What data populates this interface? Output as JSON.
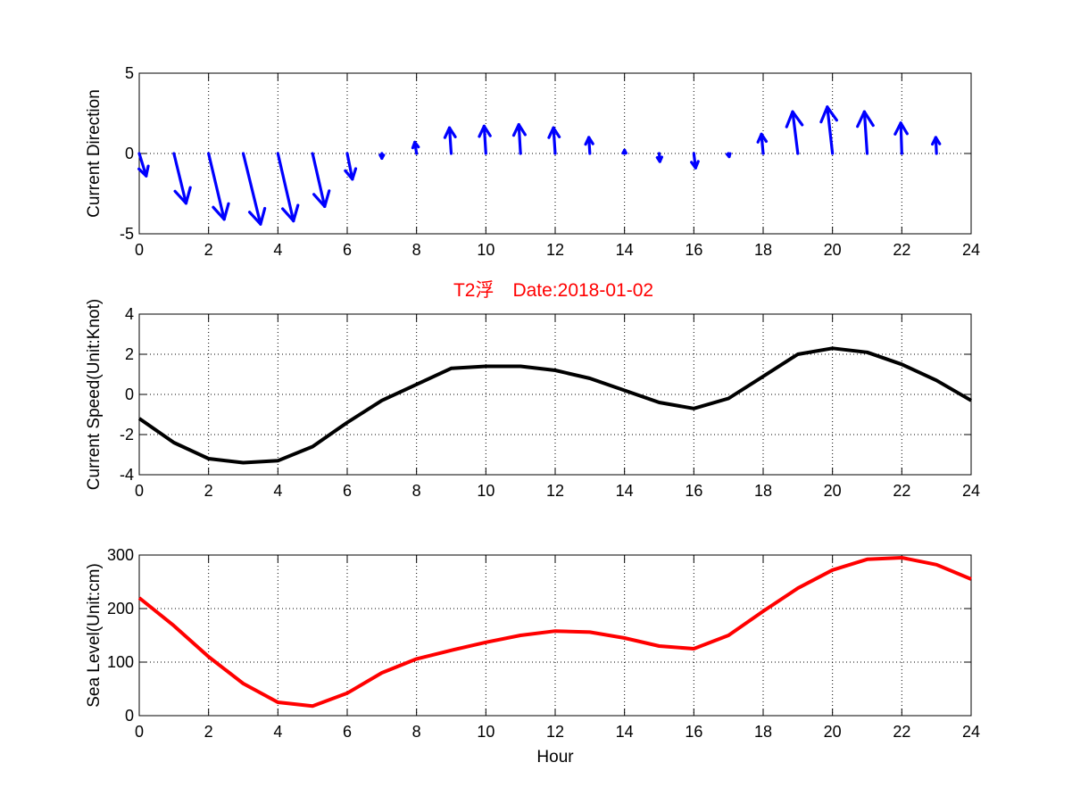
{
  "title": "T2浮　Date:2018-01-02",
  "colors": {
    "quiver": "#0000ff",
    "speed": "#000000",
    "sea": "#ff0000",
    "title": "#ff0000"
  },
  "chart_data": [
    {
      "type": "quiver",
      "ylabel": "Current Direction",
      "xlim": [
        0,
        24
      ],
      "ylim": [
        -5,
        5
      ],
      "xticks": [
        0,
        2,
        4,
        6,
        8,
        10,
        12,
        14,
        16,
        18,
        20,
        22,
        24
      ],
      "yticks": [
        -5,
        0,
        5
      ],
      "grid": true,
      "arrows": [
        {
          "x": 0,
          "u": 0.2,
          "v": -1.4
        },
        {
          "x": 1,
          "u": 0.35,
          "v": -3.1
        },
        {
          "x": 2,
          "u": 0.45,
          "v": -4.1
        },
        {
          "x": 3,
          "u": 0.5,
          "v": -4.4
        },
        {
          "x": 4,
          "u": 0.45,
          "v": -4.2
        },
        {
          "x": 5,
          "u": 0.35,
          "v": -3.3
        },
        {
          "x": 6,
          "u": 0.15,
          "v": -1.6
        },
        {
          "x": 7,
          "u": 0.0,
          "v": -0.3
        },
        {
          "x": 8,
          "u": -0.05,
          "v": 0.7
        },
        {
          "x": 9,
          "u": -0.05,
          "v": 1.6
        },
        {
          "x": 10,
          "u": -0.05,
          "v": 1.7
        },
        {
          "x": 11,
          "u": -0.05,
          "v": 1.8
        },
        {
          "x": 12,
          "u": -0.05,
          "v": 1.6
        },
        {
          "x": 13,
          "u": -0.03,
          "v": 1.0
        },
        {
          "x": 14,
          "u": 0.0,
          "v": 0.2
        },
        {
          "x": 15,
          "u": 0.02,
          "v": -0.5
        },
        {
          "x": 16,
          "u": 0.05,
          "v": -0.9
        },
        {
          "x": 17,
          "u": 0.02,
          "v": -0.2
        },
        {
          "x": 18,
          "u": -0.05,
          "v": 1.2
        },
        {
          "x": 19,
          "u": -0.15,
          "v": 2.6
        },
        {
          "x": 20,
          "u": -0.15,
          "v": 2.9
        },
        {
          "x": 21,
          "u": -0.08,
          "v": 2.6
        },
        {
          "x": 22,
          "u": -0.03,
          "v": 1.9
        },
        {
          "x": 23,
          "u": -0.02,
          "v": 1.0
        }
      ]
    },
    {
      "type": "line",
      "ylabel": "Current Speed(Unit:Knot)",
      "xlim": [
        0,
        24
      ],
      "ylim": [
        -4,
        4
      ],
      "xticks": [
        0,
        2,
        4,
        6,
        8,
        10,
        12,
        14,
        16,
        18,
        20,
        22,
        24
      ],
      "yticks": [
        -4,
        -2,
        0,
        2,
        4
      ],
      "grid": true,
      "x": [
        0,
        1,
        2,
        3,
        4,
        5,
        6,
        7,
        8,
        9,
        10,
        11,
        12,
        13,
        14,
        15,
        16,
        17,
        18,
        19,
        20,
        21,
        22,
        23,
        24
      ],
      "y": [
        -1.2,
        -2.4,
        -3.2,
        -3.4,
        -3.3,
        -2.6,
        -1.4,
        -0.3,
        0.5,
        1.3,
        1.4,
        1.4,
        1.2,
        0.8,
        0.2,
        -0.4,
        -0.7,
        -0.2,
        0.9,
        2.0,
        2.3,
        2.1,
        1.5,
        0.7,
        -0.3
      ]
    },
    {
      "type": "line",
      "xlabel": "Hour",
      "ylabel": "Sea Level(Unit:cm)",
      "xlim": [
        0,
        24
      ],
      "ylim": [
        0,
        300
      ],
      "xticks": [
        0,
        2,
        4,
        6,
        8,
        10,
        12,
        14,
        16,
        18,
        20,
        22,
        24
      ],
      "yticks": [
        0,
        100,
        200,
        300
      ],
      "grid": true,
      "x": [
        0,
        1,
        2,
        3,
        4,
        5,
        6,
        7,
        8,
        9,
        10,
        11,
        12,
        13,
        14,
        15,
        16,
        17,
        18,
        19,
        20,
        21,
        22,
        23,
        24
      ],
      "y": [
        220,
        168,
        110,
        60,
        25,
        18,
        42,
        80,
        106,
        122,
        137,
        150,
        158,
        156,
        145,
        130,
        125,
        150,
        195,
        238,
        272,
        292,
        295,
        282,
        255
      ]
    }
  ]
}
